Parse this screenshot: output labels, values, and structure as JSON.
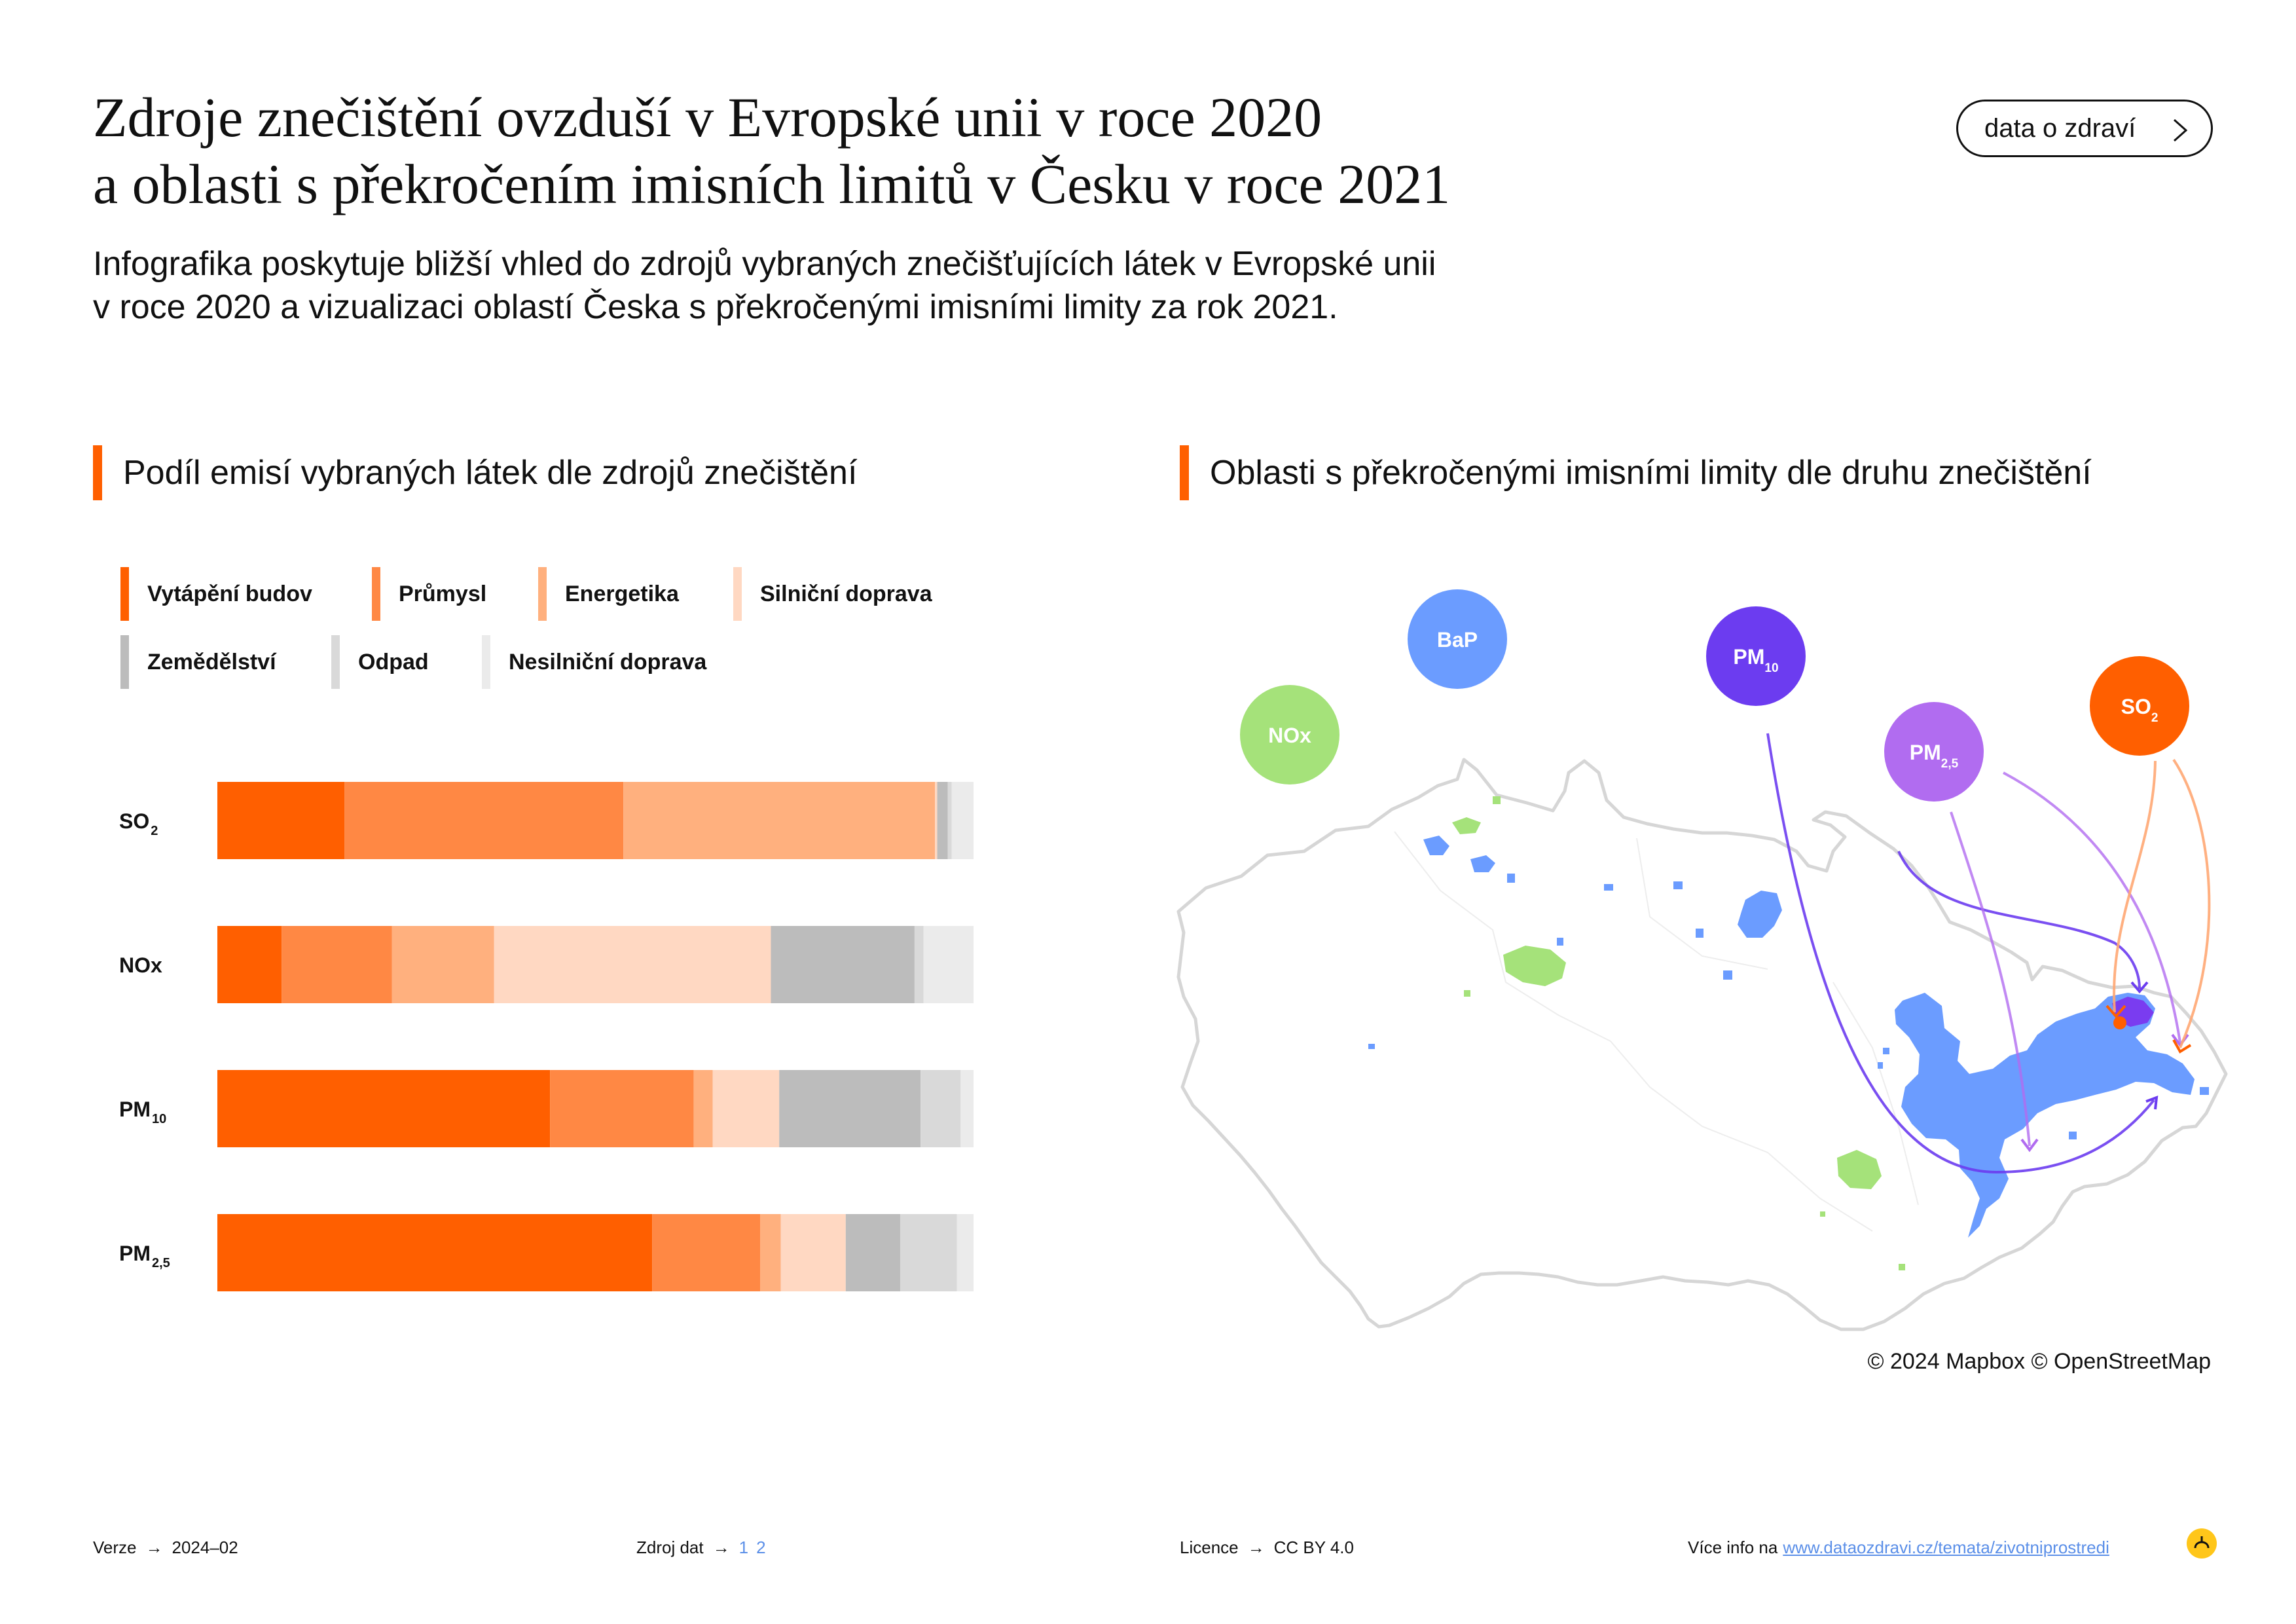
{
  "header": {
    "title_line1": "Zdroje znečištění ovzduší v Evropské unii v roce 2020",
    "title_line2": "a oblasti s překročením imisních limitů v Česku v roce 2021",
    "subtitle_line1": "Infografika poskytuje bližší vhled do zdrojů vybraných znečišťujících látek v Evropské unii",
    "subtitle_line2": "v roce 2020 a vizualizaci oblastí Česka s překročenými imisními limity za rok 2021.",
    "button_label": "data o zdraví"
  },
  "left_section": {
    "title": "Podíl emisí vybraných látek dle zdrojů znečištění"
  },
  "right_section": {
    "title": "Oblasti s překročenými imisními limity dle druhu znečištění"
  },
  "chart_data": {
    "type": "bar",
    "orientation": "horizontal",
    "stacked": true,
    "normalized_to": 100,
    "categories": [
      "SO2",
      "NOx",
      "PM10",
      "PM2,5"
    ],
    "category_labels": [
      {
        "base": "SO",
        "sub": "2"
      },
      {
        "base": "NOx",
        "sub": ""
      },
      {
        "base": "PM",
        "sub": "10"
      },
      {
        "base": "PM",
        "sub": "2,5"
      }
    ],
    "series": [
      {
        "name": "Vytápění budov",
        "color": "#ff5f00",
        "values": [
          16.8,
          8.5,
          44.0,
          57.5
        ]
      },
      {
        "name": "Průmysl",
        "color": "#ff8844",
        "values": [
          36.9,
          14.6,
          19.0,
          14.3
        ]
      },
      {
        "name": "Energetika",
        "color": "#ffb07e",
        "values": [
          41.2,
          13.5,
          2.5,
          2.7
        ]
      },
      {
        "name": "Silniční doprava",
        "color": "#ffd8c2",
        "values": [
          0.3,
          36.6,
          8.8,
          8.6
        ]
      },
      {
        "name": "Zemědělství",
        "color": "#bcbcbc",
        "values": [
          1.4,
          19.0,
          18.7,
          7.2
        ]
      },
      {
        "name": "Odpad",
        "color": "#d9d9d9",
        "values": [
          0.5,
          1.2,
          5.3,
          7.5
        ]
      },
      {
        "name": "Nesilniční doprava",
        "color": "#ebebeb",
        "values": [
          2.9,
          6.6,
          1.7,
          2.2
        ]
      }
    ],
    "legend_position": "top",
    "grid": false
  },
  "map": {
    "pollutants": [
      {
        "label": "NOx",
        "sub": "",
        "color": "#a5e27a"
      },
      {
        "label": "BaP",
        "sub": "",
        "color": "#6b9cff"
      },
      {
        "label": "PM",
        "sub": "10",
        "color": "#6c3cf0"
      },
      {
        "label": "PM",
        "sub": "2,5",
        "color": "#b16cf0"
      },
      {
        "label": "SO",
        "sub": "2",
        "color": "#ff5f00"
      }
    ],
    "area_colors": {
      "bap": "#6b9cff",
      "nox": "#a5e27a",
      "hotspot": "#7a3cf0",
      "border": "#d6d6d6"
    },
    "attribution": "© 2024 Mapbox © OpenStreetMap"
  },
  "footer": {
    "version_label": "Verze",
    "version_value": "2024–02",
    "source_label": "Zdroj dat",
    "source_links": [
      "1",
      "2"
    ],
    "license_label": "Licence",
    "license_value": "CC BY 4.0",
    "more_info_label": "Více info na",
    "more_info_link": "www.dataozdravi.cz/temata/zivotniprostredi",
    "arrow": "→"
  }
}
